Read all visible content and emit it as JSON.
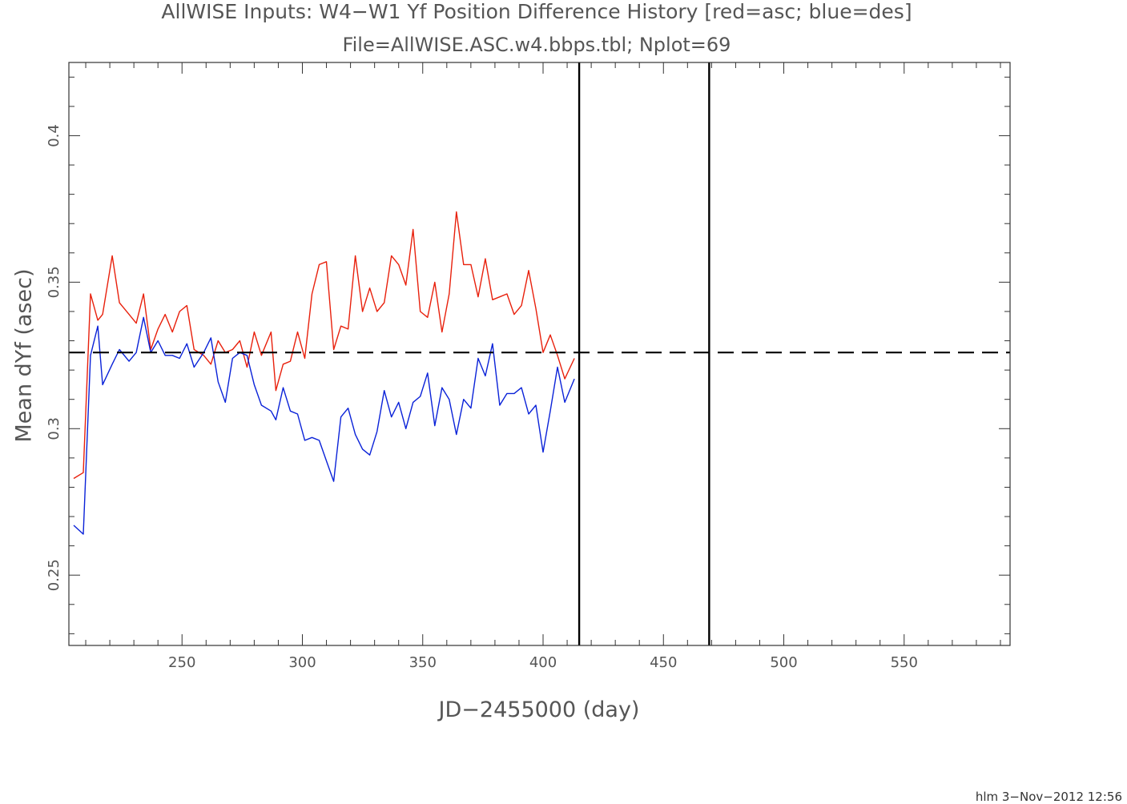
{
  "title": "AllWISE Inputs: W4−W1 Yf Position Difference History [red=asc; blue=des]",
  "subtitle": "File=AllWISE.ASC.w4.bbps.tbl; Nplot=69",
  "footer": "hlm   3−Nov−2012 12:56",
  "colors": {
    "asc": "#e8200c",
    "des": "#0a22d8",
    "reference": "#000000",
    "frame": "#333333"
  },
  "chart_data": {
    "type": "line",
    "xlabel": "JD−2455000 (day)",
    "ylabel": "Mean dYf (asec)",
    "xlim": [
      203,
      594
    ],
    "ylim": [
      0.226,
      0.425
    ],
    "xticks_major": [
      250,
      300,
      350,
      400,
      450,
      500,
      550
    ],
    "xtick_labels": [
      "250",
      "300",
      "350",
      "400",
      "450",
      "500",
      "550"
    ],
    "yticks_major": [
      0.25,
      0.3,
      0.35,
      0.4
    ],
    "ytick_labels": [
      "0.25",
      "0.3",
      "0.35",
      "0.4"
    ],
    "grid": false,
    "reference_lines": {
      "horizontal_y": 0.326,
      "vertical_x": [
        415,
        469
      ]
    },
    "series": [
      {
        "name": "asc",
        "color": "#e8200c",
        "x": [
          205,
          209,
          212,
          215,
          217,
          221,
          224,
          228,
          231,
          234,
          237,
          240,
          243,
          246,
          249,
          252,
          255,
          259,
          262,
          265,
          268,
          271,
          274,
          277,
          280,
          283,
          287,
          289,
          292,
          295,
          298,
          301,
          304,
          307,
          310,
          313,
          316,
          319,
          322,
          325,
          328,
          331,
          334,
          337,
          340,
          343,
          346,
          349,
          352,
          355,
          358,
          361,
          364,
          367,
          370,
          373,
          376,
          379,
          382,
          385,
          388,
          391,
          394,
          397,
          400,
          403,
          406,
          409,
          413
        ],
        "y": [
          0.283,
          0.285,
          0.346,
          0.337,
          0.339,
          0.359,
          0.343,
          0.339,
          0.336,
          0.346,
          0.327,
          0.334,
          0.339,
          0.333,
          0.34,
          0.342,
          0.327,
          0.325,
          0.322,
          0.33,
          0.326,
          0.327,
          0.33,
          0.321,
          0.333,
          0.325,
          0.333,
          0.313,
          0.322,
          0.323,
          0.333,
          0.324,
          0.346,
          0.356,
          0.357,
          0.327,
          0.335,
          0.334,
          0.359,
          0.34,
          0.348,
          0.34,
          0.343,
          0.359,
          0.356,
          0.349,
          0.368,
          0.34,
          0.338,
          0.35,
          0.333,
          0.346,
          0.374,
          0.356,
          0.356,
          0.345,
          0.358,
          0.344,
          0.345,
          0.346,
          0.339,
          0.342,
          0.354,
          0.341,
          0.326,
          0.332,
          0.325,
          0.317,
          0.324
        ]
      },
      {
        "name": "des",
        "color": "#0a22d8",
        "x": [
          205,
          209,
          212,
          215,
          217,
          221,
          224,
          228,
          231,
          234,
          237,
          240,
          243,
          246,
          249,
          252,
          255,
          259,
          262,
          265,
          268,
          271,
          274,
          277,
          280,
          283,
          287,
          289,
          292,
          295,
          298,
          301,
          304,
          307,
          310,
          313,
          316,
          319,
          322,
          325,
          328,
          331,
          334,
          337,
          340,
          343,
          346,
          349,
          352,
          355,
          358,
          361,
          364,
          367,
          370,
          373,
          376,
          379,
          382,
          385,
          388,
          391,
          394,
          397,
          400,
          403,
          406,
          409,
          413
        ],
        "y": [
          0.267,
          0.264,
          0.325,
          0.335,
          0.315,
          0.322,
          0.327,
          0.323,
          0.326,
          0.338,
          0.326,
          0.33,
          0.325,
          0.325,
          0.324,
          0.329,
          0.321,
          0.326,
          0.331,
          0.316,
          0.309,
          0.324,
          0.326,
          0.325,
          0.315,
          0.308,
          0.306,
          0.303,
          0.314,
          0.306,
          0.305,
          0.296,
          0.297,
          0.296,
          0.289,
          0.282,
          0.304,
          0.307,
          0.298,
          0.293,
          0.291,
          0.299,
          0.313,
          0.304,
          0.309,
          0.3,
          0.309,
          0.311,
          0.319,
          0.301,
          0.314,
          0.31,
          0.298,
          0.31,
          0.307,
          0.324,
          0.318,
          0.329,
          0.308,
          0.312,
          0.312,
          0.314,
          0.305,
          0.308,
          0.292,
          0.306,
          0.321,
          0.309,
          0.317
        ]
      }
    ]
  }
}
